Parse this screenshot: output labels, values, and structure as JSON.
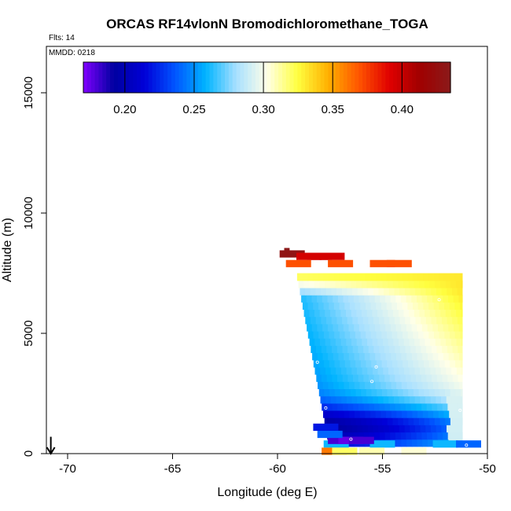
{
  "chart_data": {
    "type": "heatmap",
    "title": "ORCAS RF14vlonN Bromodichloromethane_TOGA",
    "flights_label": "Flts: 14",
    "date_label": "MMDD: 0218",
    "xlabel": "Longitude (deg E)",
    "ylabel": "Altitude (m)",
    "xlim": [
      -71,
      -50
    ],
    "ylim": [
      0,
      16500
    ],
    "xticks": [
      -70,
      -65,
      -60,
      -55,
      -50
    ],
    "xtick_labels": [
      "-70",
      "-65",
      "-60",
      "-55",
      "-50"
    ],
    "yticks": [
      0,
      5000,
      10000,
      15000
    ],
    "ytick_labels": [
      "0",
      "5000",
      "10000",
      "15000"
    ],
    "colorbar": {
      "min": 0.17,
      "max": 0.435,
      "ticks": [
        0.2,
        0.25,
        0.3,
        0.35,
        0.4
      ],
      "tick_labels": [
        "0.20",
        "0.25",
        "0.30",
        "0.35",
        "0.40"
      ],
      "colors": [
        "#8000ff",
        "#0000a0",
        "#0000d8",
        "#0055ff",
        "#00b4ff",
        "#a8e0ff",
        "#ffffe8",
        "#ffff40",
        "#ffb000",
        "#ff5500",
        "#e00000",
        "#a00000",
        "#8b1a1a"
      ]
    },
    "cell_size": {
      "lon": 0.25,
      "alt": 300
    },
    "field": {
      "lon_left": -59.1,
      "lon_right": -51.2,
      "alt_bottom": 300,
      "alt_top": 7500,
      "lower_left_edge": [
        [
          -59.1,
          7500
        ],
        [
          -57.6,
          600
        ]
      ],
      "top_value": 0.33,
      "right_value": 0.3,
      "low_band_alt": 1100,
      "low_band_value": 0.19
    },
    "extra_cells": [
      {
        "lon": -59.55,
        "alt": 8400,
        "value": 0.435
      },
      {
        "lon": -59.3,
        "alt": 8300,
        "value": 0.43
      },
      {
        "lon": -58.5,
        "alt": 8200,
        "value": 0.395
      },
      {
        "lon": -58.0,
        "alt": 8200,
        "value": 0.395
      },
      {
        "lon": -57.4,
        "alt": 8200,
        "value": 0.395
      },
      {
        "lon": -59.0,
        "alt": 7900,
        "value": 0.37
      },
      {
        "lon": -57.0,
        "alt": 7900,
        "value": 0.37
      },
      {
        "lon": -55.0,
        "alt": 7900,
        "value": 0.37
      },
      {
        "lon": -54.2,
        "alt": 7900,
        "value": 0.37
      },
      {
        "lon": -57.2,
        "alt": 400,
        "value": 0.26
      },
      {
        "lon": -55.0,
        "alt": 400,
        "value": 0.26
      },
      {
        "lon": -52.0,
        "alt": 400,
        "value": 0.26
      },
      {
        "lon": -50.9,
        "alt": 400,
        "value": 0.24
      },
      {
        "lon": -57.3,
        "alt": 100,
        "value": 0.36
      },
      {
        "lon": -56.8,
        "alt": 100,
        "value": 0.32
      },
      {
        "lon": -55.5,
        "alt": 100,
        "value": 0.31
      },
      {
        "lon": -53.5,
        "alt": 100,
        "value": 0.305
      },
      {
        "lon": -57.0,
        "alt": 550,
        "value": 0.18
      },
      {
        "lon": -56.5,
        "alt": 550,
        "value": 0.175
      },
      {
        "lon": -56.0,
        "alt": 550,
        "value": 0.18
      },
      {
        "lon": -57.5,
        "alt": 800,
        "value": 0.24
      },
      {
        "lon": -57.7,
        "alt": 1100,
        "value": 0.22
      }
    ],
    "sample_points": [
      {
        "lon": -58.1,
        "alt": 3800
      },
      {
        "lon": -55.3,
        "alt": 3600
      },
      {
        "lon": -55.5,
        "alt": 3000
      },
      {
        "lon": -57.7,
        "alt": 1900
      },
      {
        "lon": -51.3,
        "alt": 1800
      },
      {
        "lon": -52.3,
        "alt": 6400
      },
      {
        "lon": -56.5,
        "alt": 600
      },
      {
        "lon": -51.0,
        "alt": 350
      },
      {
        "lon": -59.2,
        "alt": 7300
      }
    ],
    "arrow_marker": {
      "lon": -70.8,
      "alt_from": 700,
      "alt_to": 0
    }
  }
}
